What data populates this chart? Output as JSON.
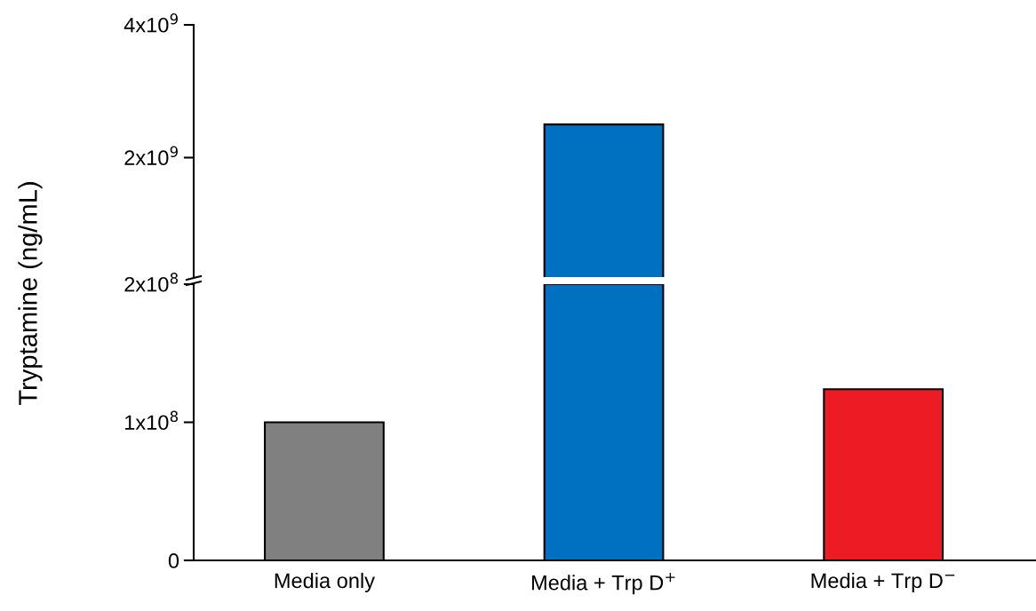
{
  "chart_data": [
    {
      "type": "bar",
      "categories": [
        null,
        null,
        null
      ],
      "values": [
        null,
        2500000000.0,
        null
      ],
      "colors": [
        "#808080",
        "#0070c0",
        "#ed1c24"
      ],
      "ylim": [
        200000000.0,
        4000000000.0
      ],
      "yticks": [
        {
          "value": 2000000000.0,
          "label": "2x10$^{9}$"
        },
        {
          "value": 4000000000.0,
          "label": "4x10$^{9}$"
        }
      ],
      "tick_labels": "y"
    },
    {
      "type": "bar",
      "categories": [
        "Media only",
        "Media + Trp D$^{+}$",
        "Media + Trp D$^{−}$"
      ],
      "values": [
        100000000.0,
        200000000.0,
        124000000.0
      ],
      "colors": [
        "#808080",
        "#0070c0",
        "#ed1c24"
      ],
      "ylabel": "Tryptamine (ng/mL)",
      "ylim": [
        0,
        200000000.0
      ],
      "yticks": [
        0,
        {
          "value": 100000000.0,
          "label": "1x10$^{8}$"
        },
        {
          "value": 200000000.0,
          "label": "2x10$^{8}$"
        }
      ]
    }
  ]
}
